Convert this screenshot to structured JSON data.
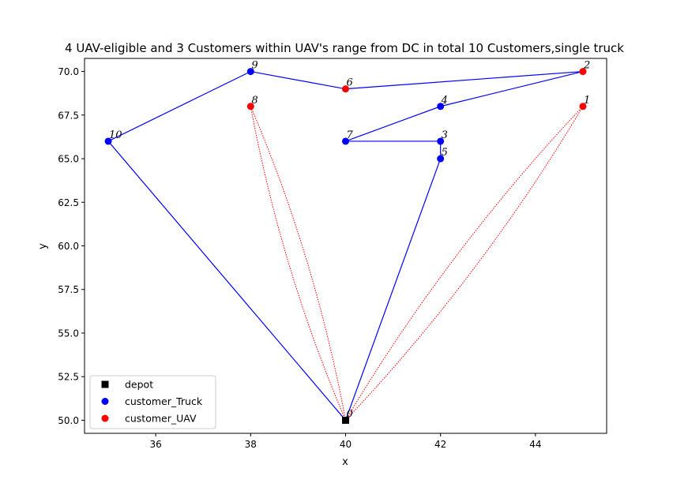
{
  "chart_data": {
    "type": "scatter",
    "title": "4 UAV-eligible and 3 Customers within UAV's range from DC in total 10 Customers,single truck",
    "xlabel": "x",
    "ylabel": "y",
    "xlim": [
      34.5,
      45.5
    ],
    "ylim": [
      49.25,
      70.75
    ],
    "xticks": [
      36,
      38,
      40,
      42,
      44
    ],
    "yticks": [
      50.0,
      52.5,
      55.0,
      57.5,
      60.0,
      62.5,
      65.0,
      67.5,
      70.0
    ],
    "ytick_labels": [
      "50.0",
      "52.5",
      "55.0",
      "57.5",
      "60.0",
      "62.5",
      "65.0",
      "67.5",
      "70.0"
    ],
    "grid": false,
    "legend_position": "lower-left",
    "colors": {
      "depot": "#000000",
      "customer_Truck": "#0000ff",
      "customer_UAV": "#ff0000",
      "truck_route": "#0000ff",
      "uav_route": "#ff0000"
    },
    "series": [
      {
        "name": "depot",
        "marker": "square",
        "points": [
          {
            "id": "0",
            "x": 40,
            "y": 50
          }
        ]
      },
      {
        "name": "customer_Truck",
        "marker": "circle",
        "points": [
          {
            "id": "3",
            "x": 42,
            "y": 66
          },
          {
            "id": "4",
            "x": 42,
            "y": 68
          },
          {
            "id": "5",
            "x": 42,
            "y": 65
          },
          {
            "id": "7",
            "x": 40,
            "y": 66
          },
          {
            "id": "9",
            "x": 38,
            "y": 70
          },
          {
            "id": "10",
            "x": 35,
            "y": 66
          }
        ]
      },
      {
        "name": "customer_UAV",
        "marker": "circle",
        "points": [
          {
            "id": "1",
            "x": 45,
            "y": 68
          },
          {
            "id": "2",
            "x": 45,
            "y": 70
          },
          {
            "id": "6",
            "x": 40,
            "y": 69
          },
          {
            "id": "8",
            "x": 38,
            "y": 68
          }
        ]
      }
    ],
    "truck_route": [
      [
        40,
        50
      ],
      [
        42,
        65
      ],
      [
        42,
        66
      ],
      [
        40,
        66
      ],
      [
        42,
        68
      ],
      [
        45,
        70
      ],
      [
        40,
        69
      ],
      [
        38,
        70
      ],
      [
        35,
        66
      ],
      [
        40,
        50
      ]
    ],
    "uav_routes": [
      {
        "from": [
          40,
          50
        ],
        "to": [
          38,
          68
        ]
      },
      {
        "from": [
          40,
          50
        ],
        "to": [
          45,
          68
        ]
      }
    ],
    "labels": [
      {
        "text": "0",
        "x": 40,
        "y": 50
      },
      {
        "text": "1",
        "x": 45,
        "y": 68
      },
      {
        "text": "2",
        "x": 45,
        "y": 70
      },
      {
        "text": "3",
        "x": 42,
        "y": 66
      },
      {
        "text": "4",
        "x": 42,
        "y": 68
      },
      {
        "text": "5",
        "x": 42,
        "y": 65
      },
      {
        "text": "6",
        "x": 40,
        "y": 69
      },
      {
        "text": "7",
        "x": 40,
        "y": 66
      },
      {
        "text": "8",
        "x": 38,
        "y": 68
      },
      {
        "text": "9",
        "x": 38,
        "y": 70
      },
      {
        "text": "10",
        "x": 35,
        "y": 66
      }
    ],
    "legend": [
      "depot",
      "customer_Truck",
      "customer_UAV"
    ]
  }
}
